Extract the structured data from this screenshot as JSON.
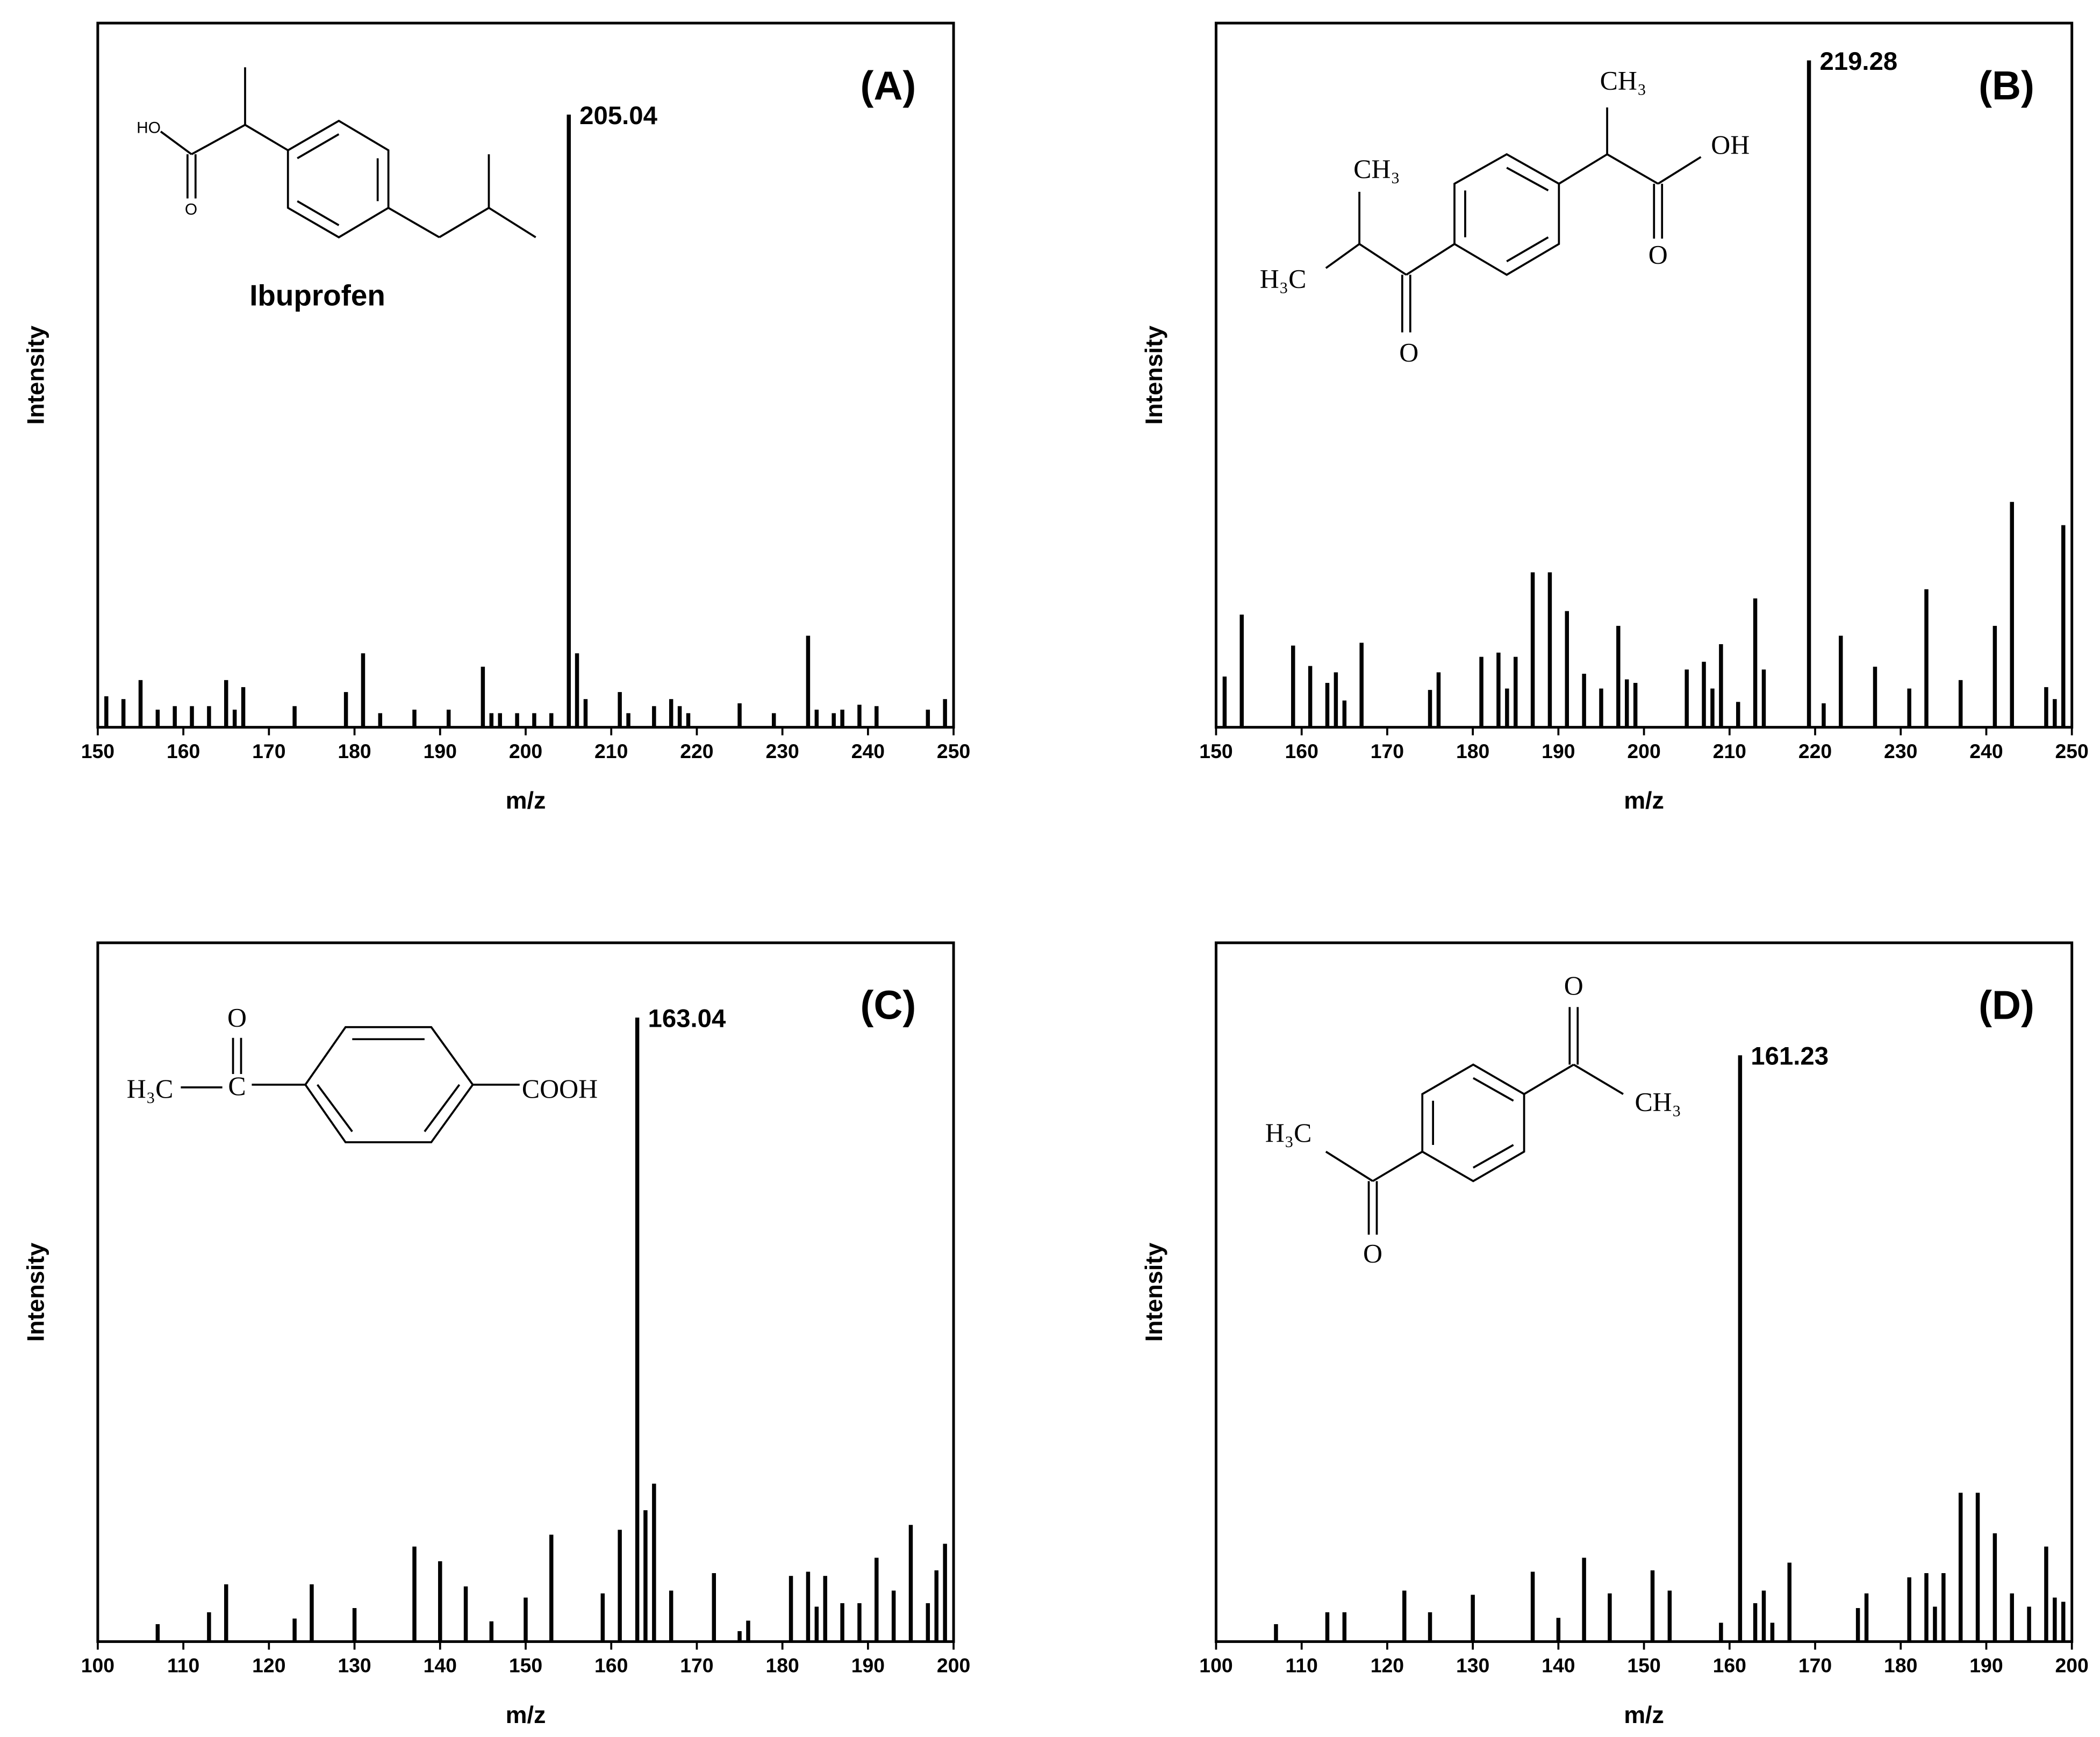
{
  "chart_data": [
    {
      "type": "bar",
      "panel_label": "(A)",
      "xlabel": "m/z",
      "ylabel": "Intensity",
      "compound": "Ibuprofen",
      "color": "#000000",
      "structure_labels": [
        "HO",
        "O"
      ],
      "x": [
        151,
        153,
        155,
        157,
        159,
        161,
        163,
        165,
        166,
        167,
        173,
        179,
        181,
        183,
        187,
        191,
        195,
        196,
        197,
        199,
        201,
        203,
        205.04,
        206,
        207,
        211,
        212,
        215,
        217,
        218,
        219,
        225,
        229,
        233,
        234,
        236,
        237,
        239,
        241,
        247,
        249
      ],
      "values": [
        4.4,
        4,
        6.7,
        2.5,
        3,
        3,
        3,
        6.7,
        2.5,
        5.7,
        3,
        5,
        10.5,
        2,
        2.5,
        2.5,
        8.6,
        2,
        2,
        2,
        2,
        2,
        87,
        10.5,
        4,
        5,
        2,
        3,
        4,
        3,
        2,
        3.4,
        2,
        13,
        2.5,
        2,
        2.5,
        3.2,
        3,
        2.5,
        4
      ],
      "xlim": [
        150,
        250
      ],
      "xticks": [
        150,
        160,
        170,
        180,
        190,
        200,
        210,
        220,
        230,
        240,
        250
      ],
      "ylim": [
        0,
        100
      ]
    },
    {
      "type": "bar",
      "panel_label": "(B)",
      "xlabel": "m/z",
      "ylabel": "Intensity",
      "color": "#000000",
      "structure_labels": [
        "CH₃",
        "OH",
        "O",
        "CH₃",
        "H₃C",
        "O"
      ],
      "x": [
        151,
        153,
        159,
        161,
        163,
        164,
        165,
        167,
        175,
        176,
        181,
        183,
        184,
        185,
        187,
        189,
        191,
        193,
        195,
        197,
        198,
        199,
        205,
        207,
        208,
        209,
        211,
        213,
        214,
        219.28,
        221,
        223,
        227,
        231,
        233,
        237,
        241,
        243,
        247,
        248,
        249
      ],
      "values": [
        7.2,
        16,
        11.6,
        8.7,
        6.3,
        7.8,
        3.8,
        12,
        5.3,
        7.8,
        10,
        10.6,
        5.5,
        10,
        22,
        22,
        16.5,
        7.6,
        5.5,
        14.4,
        6.8,
        6.3,
        8.2,
        9.3,
        5.5,
        11.8,
        3.6,
        18.3,
        8.2,
        94.7,
        3.4,
        13,
        8.6,
        5.5,
        19.6,
        6.7,
        14.4,
        32,
        5.7,
        4,
        28.7
      ],
      "xlim": [
        150,
        250
      ],
      "xticks": [
        150,
        160,
        170,
        180,
        190,
        200,
        210,
        220,
        230,
        240,
        250
      ],
      "ylim": [
        0,
        100
      ]
    },
    {
      "type": "bar",
      "panel_label": "(C)",
      "xlabel": "m/z",
      "ylabel": "Intensity",
      "color": "#000000",
      "structure_labels": [
        "O",
        "C",
        "H₃C",
        "COOH"
      ],
      "x": [
        107,
        113,
        115,
        123,
        125,
        130,
        137,
        140,
        143,
        146,
        150,
        153,
        159,
        161,
        163.04,
        164,
        165,
        167,
        172,
        175,
        176,
        181,
        183,
        184,
        185,
        187,
        189,
        191,
        193,
        195,
        197,
        198,
        199
      ],
      "values": [
        2.5,
        4.2,
        8.2,
        3.3,
        8.2,
        4.8,
        13.6,
        11.5,
        7.9,
        2.9,
        6.3,
        15.3,
        6.9,
        16,
        89.3,
        18.8,
        22.6,
        7.3,
        9.8,
        1.5,
        3,
        9.4,
        10,
        5,
        9.4,
        5.5,
        5.5,
        12,
        7.3,
        16.7,
        5.5,
        10.2,
        14
      ],
      "xlim": [
        100,
        200
      ],
      "xticks": [
        100,
        110,
        120,
        130,
        140,
        150,
        160,
        170,
        180,
        190,
        200
      ],
      "ylim": [
        0,
        100
      ]
    },
    {
      "type": "bar",
      "panel_label": "(D)",
      "xlabel": "m/z",
      "ylabel": "Intensity",
      "color": "#000000",
      "structure_labels": [
        "O",
        "CH₃",
        "H₃C",
        "O"
      ],
      "x": [
        107,
        113,
        115,
        122,
        125,
        130,
        137,
        140,
        143,
        146,
        151,
        153,
        159,
        161.23,
        163,
        164,
        165,
        167,
        175,
        176,
        181,
        183,
        184,
        185,
        187,
        189,
        191,
        193,
        195,
        197,
        198,
        199
      ],
      "values": [
        2.5,
        4.2,
        4.2,
        7.3,
        4.2,
        6.7,
        10,
        3.4,
        12,
        6.9,
        10.2,
        7.3,
        2.7,
        83.9,
        5.5,
        7.3,
        2.7,
        11.3,
        4.8,
        6.9,
        9.2,
        9.8,
        5,
        9.8,
        21.3,
        21.3,
        15.5,
        6.9,
        5,
        13.6,
        6.3,
        5.7
      ],
      "xlim": [
        100,
        200
      ],
      "xticks": [
        100,
        110,
        120,
        130,
        140,
        150,
        160,
        170,
        180,
        190,
        200
      ],
      "ylim": [
        0,
        100
      ]
    }
  ]
}
